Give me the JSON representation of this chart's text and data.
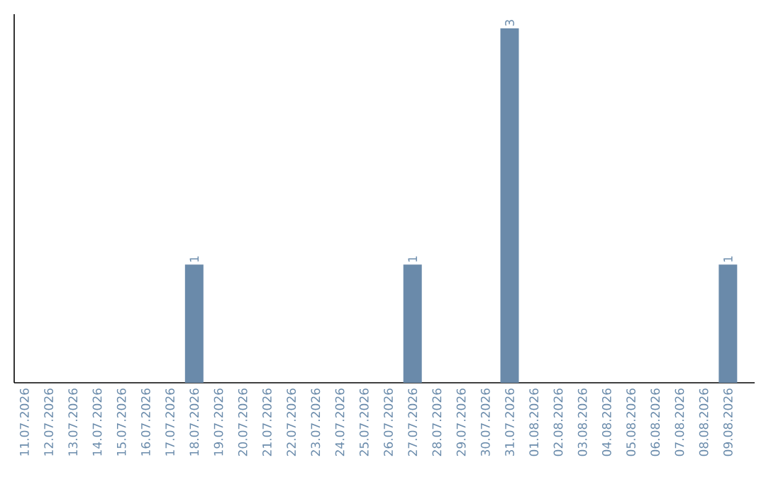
{
  "chart_data": {
    "type": "bar",
    "categories": [
      "11.07.2026",
      "12.07.2026",
      "13.07.2026",
      "14.07.2026",
      "15.07.2026",
      "16.07.2026",
      "17.07.2026",
      "18.07.2026",
      "19.07.2026",
      "20.07.2026",
      "21.07.2026",
      "22.07.2026",
      "23.07.2026",
      "24.07.2026",
      "25.07.2026",
      "26.07.2026",
      "27.07.2026",
      "28.07.2026",
      "29.07.2026",
      "30.07.2026",
      "31.07.2026",
      "01.08.2026",
      "02.08.2026",
      "03.08.2026",
      "04.08.2026",
      "05.08.2026",
      "06.08.2026",
      "07.08.2026",
      "08.08.2026",
      "09.08.2026"
    ],
    "values": [
      0,
      0,
      0,
      0,
      0,
      0,
      0,
      1,
      0,
      0,
      0,
      0,
      0,
      0,
      0,
      0,
      1,
      0,
      0,
      0,
      3,
      0,
      0,
      0,
      0,
      0,
      0,
      0,
      0,
      1
    ],
    "value_labels": [
      null,
      null,
      null,
      null,
      null,
      null,
      null,
      "1",
      null,
      null,
      null,
      null,
      null,
      null,
      null,
      null,
      "1",
      null,
      null,
      null,
      "3",
      null,
      null,
      null,
      null,
      null,
      null,
      null,
      null,
      "1"
    ],
    "color": "#6a8aaa"
  }
}
